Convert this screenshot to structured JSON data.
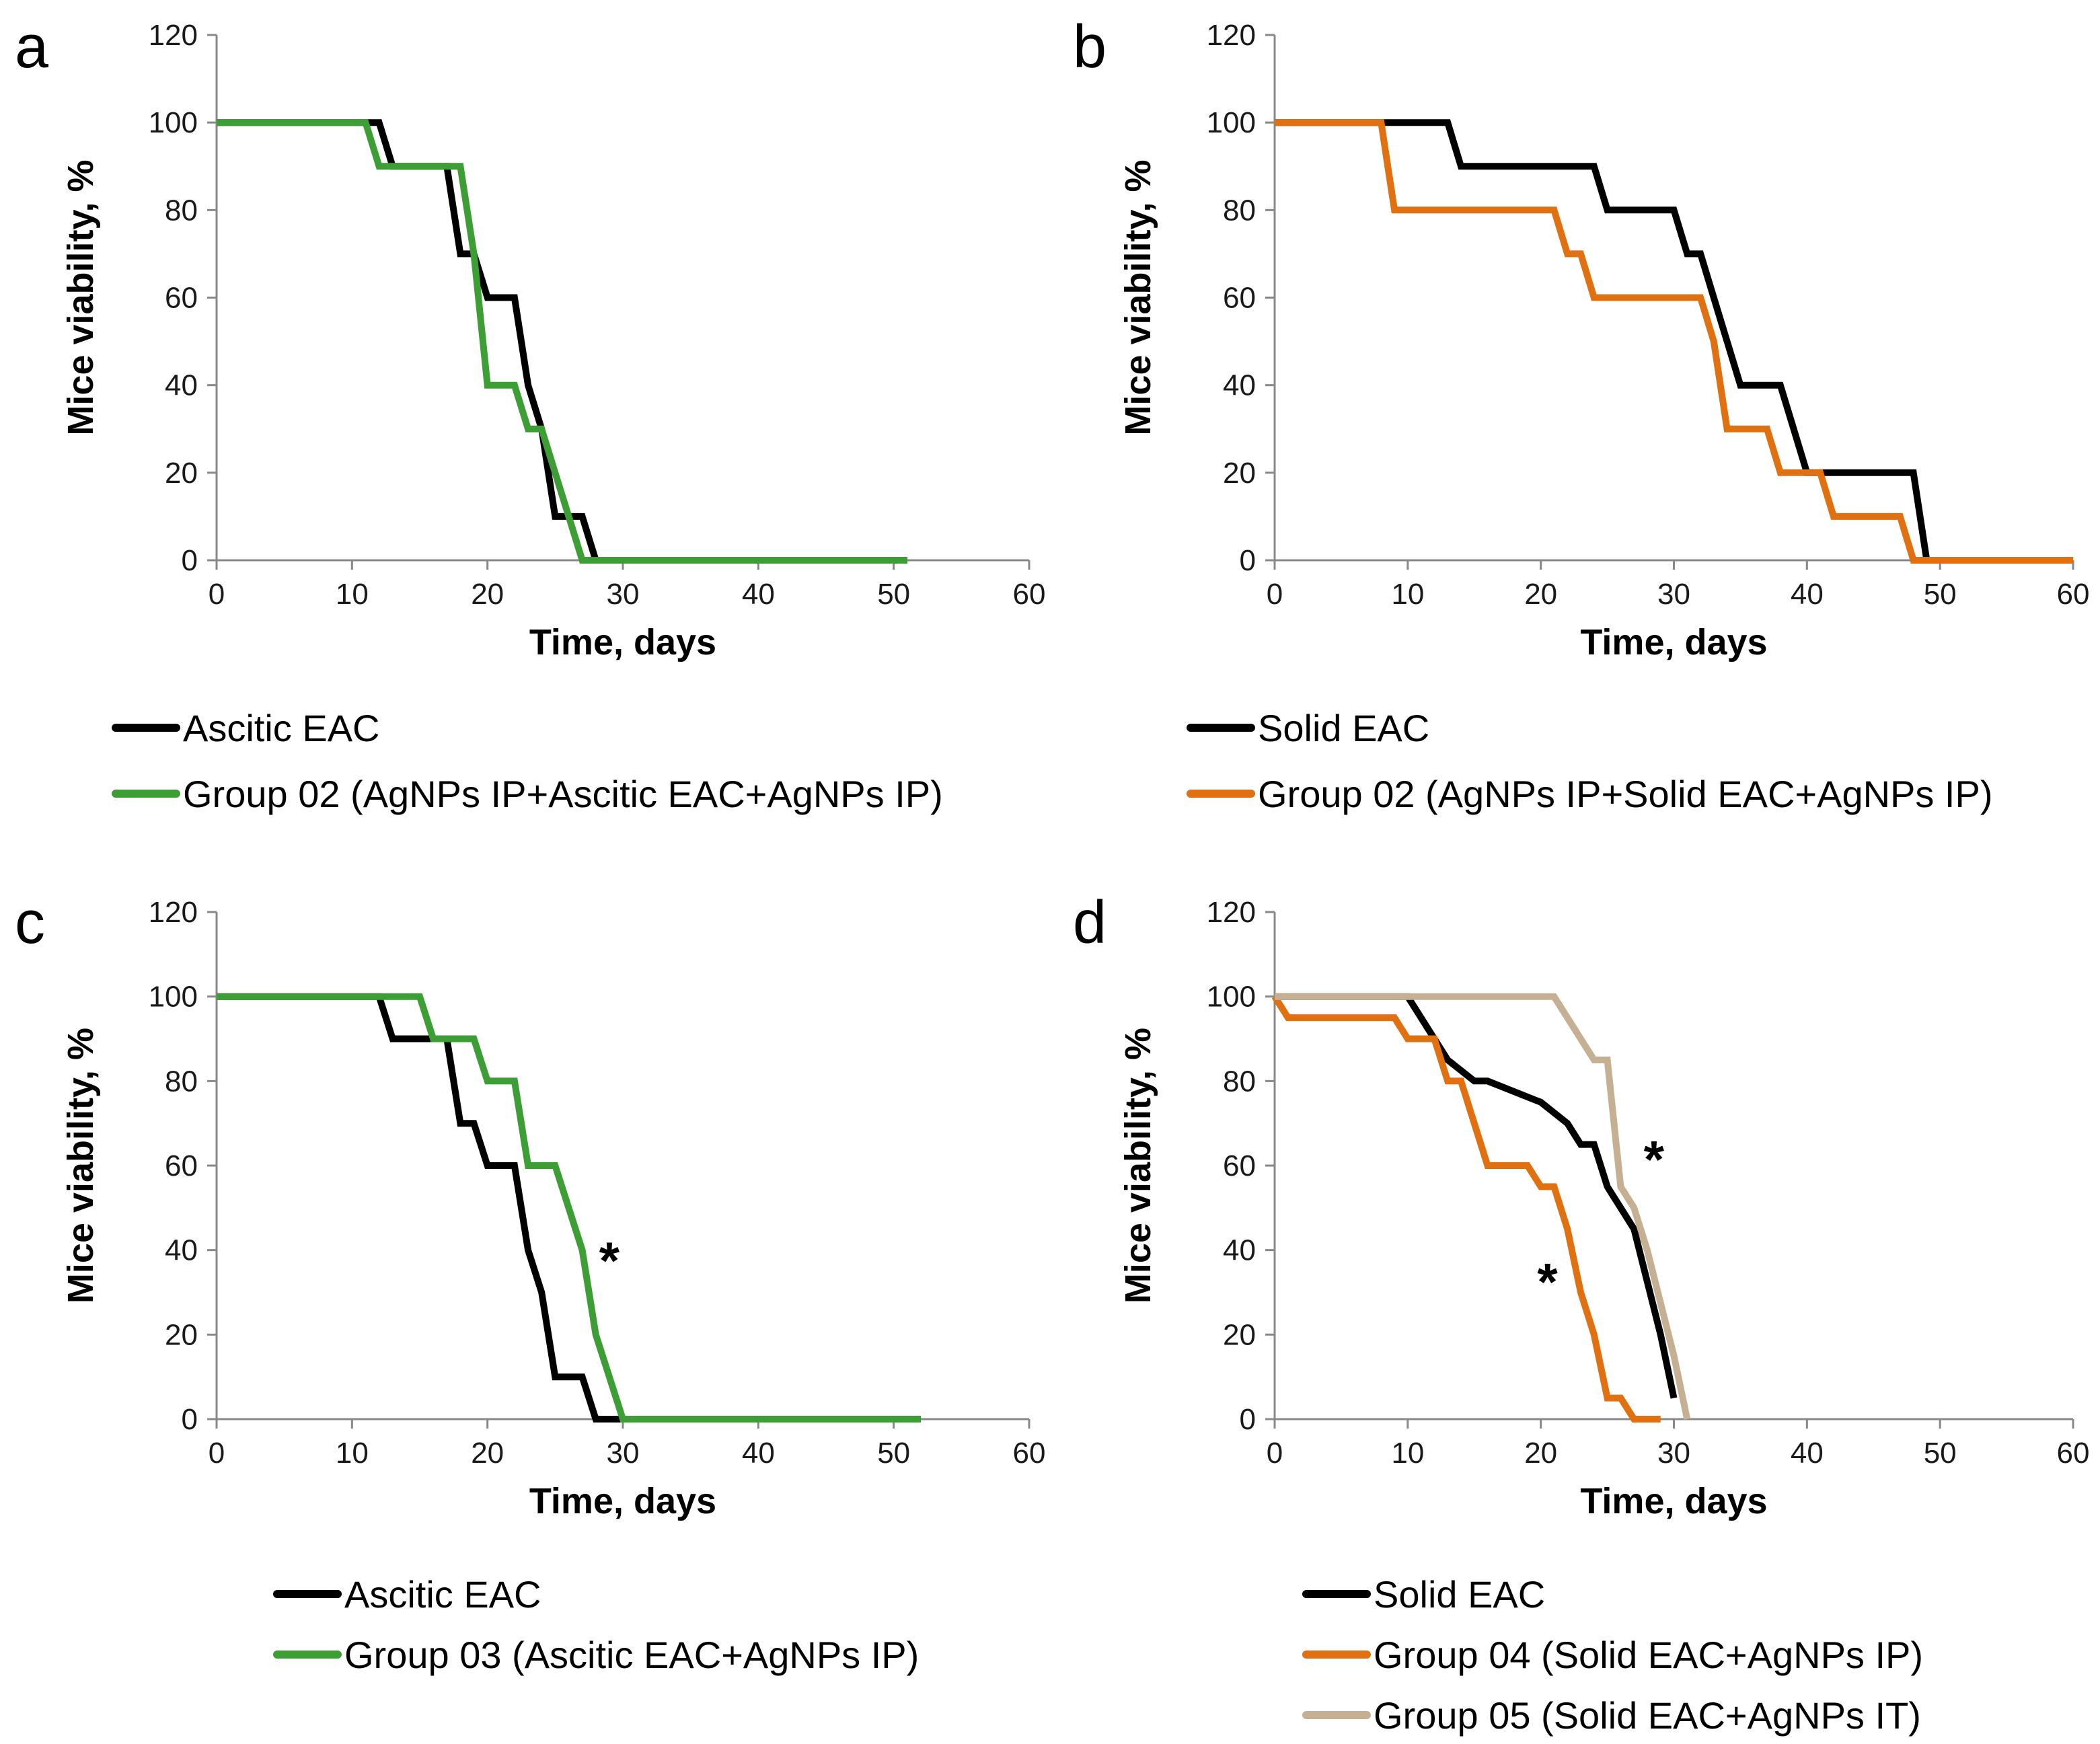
{
  "chart_data": [
    {
      "type": "line",
      "panel": "a",
      "xlabel": "Time, days",
      "ylabel": "Mice viability, %",
      "xlim": [
        0,
        60
      ],
      "ylim": [
        0,
        120
      ],
      "xticks": [
        0,
        10,
        20,
        30,
        40,
        50,
        60
      ],
      "yticks": [
        0,
        20,
        40,
        60,
        80,
        100,
        120
      ],
      "legend_position": "bottom",
      "series": [
        {
          "name": "Ascitic EAC",
          "color": "#000000",
          "x": [
            0,
            12,
            13,
            17,
            18,
            19,
            20,
            22,
            23,
            24,
            25,
            26,
            27,
            28,
            51
          ],
          "y": [
            100,
            100,
            90,
            90,
            70,
            70,
            60,
            60,
            40,
            30,
            10,
            10,
            10,
            0,
            0
          ]
        },
        {
          "name": "Group 02 (AgNPs IP+Ascitic EAC+AgNPs IP)",
          "color": "#3d9e35",
          "x": [
            0,
            11,
            12,
            18,
            19,
            20,
            22,
            23,
            24,
            25,
            26,
            27,
            51
          ],
          "y": [
            100,
            100,
            90,
            90,
            70,
            40,
            40,
            30,
            30,
            20,
            10,
            0,
            0
          ]
        }
      ],
      "annotations": []
    },
    {
      "type": "line",
      "panel": "b",
      "xlabel": "Time, days",
      "ylabel": "Mice viability, %",
      "xlim": [
        0,
        60
      ],
      "ylim": [
        0,
        120
      ],
      "xticks": [
        0,
        10,
        20,
        30,
        40,
        50,
        60
      ],
      "yticks": [
        0,
        20,
        40,
        60,
        80,
        100,
        120
      ],
      "legend_position": "bottom",
      "series": [
        {
          "name": "Solid EAC",
          "color": "#000000",
          "x": [
            0,
            13,
            14,
            24,
            25,
            30,
            31,
            32,
            33,
            34,
            35,
            38,
            39,
            40,
            41,
            48,
            49,
            60
          ],
          "y": [
            100,
            100,
            90,
            90,
            80,
            80,
            70,
            70,
            60,
            50,
            40,
            40,
            30,
            20,
            20,
            20,
            0,
            0
          ]
        },
        {
          "name": "Group 02 (AgNPs IP+Solid EAC+AgNPs IP)",
          "color": "#e07010",
          "x": [
            0,
            8,
            9,
            21,
            22,
            23,
            24,
            32,
            33,
            34,
            37,
            38,
            41,
            42,
            47,
            48,
            60
          ],
          "y": [
            100,
            100,
            80,
            80,
            70,
            70,
            60,
            60,
            50,
            30,
            30,
            20,
            20,
            10,
            10,
            0,
            0
          ]
        }
      ],
      "annotations": []
    },
    {
      "type": "line",
      "panel": "c",
      "xlabel": "Time, days",
      "ylabel": "Mice viability, %",
      "xlim": [
        0,
        60
      ],
      "ylim": [
        0,
        120
      ],
      "xticks": [
        0,
        10,
        20,
        30,
        40,
        50,
        60
      ],
      "yticks": [
        0,
        20,
        40,
        60,
        80,
        100,
        120
      ],
      "legend_position": "bottom",
      "series": [
        {
          "name": "Ascitic EAC",
          "color": "#000000",
          "x": [
            0,
            12,
            13,
            17,
            18,
            19,
            20,
            22,
            23,
            24,
            25,
            27,
            28,
            52
          ],
          "y": [
            100,
            100,
            90,
            90,
            70,
            70,
            60,
            60,
            40,
            30,
            10,
            10,
            0,
            0
          ]
        },
        {
          "name": "Group 03 (Ascitic EAC+AgNPs IP)",
          "color": "#3d9e35",
          "x": [
            0,
            15,
            16,
            19,
            20,
            22,
            23,
            25,
            27,
            28,
            29,
            30,
            52
          ],
          "y": [
            100,
            100,
            90,
            90,
            80,
            80,
            60,
            60,
            40,
            20,
            10,
            0,
            0
          ]
        }
      ],
      "annotations": [
        {
          "text": "*",
          "x": 29,
          "y": 38
        }
      ]
    },
    {
      "type": "line",
      "panel": "d",
      "xlabel": "Time, days",
      "ylabel": "Mice viability, %",
      "xlim": [
        0,
        60
      ],
      "ylim": [
        0,
        120
      ],
      "xticks": [
        0,
        10,
        20,
        30,
        40,
        50,
        60
      ],
      "yticks": [
        0,
        20,
        40,
        60,
        80,
        100,
        120
      ],
      "legend_position": "bottom",
      "series": [
        {
          "name": "Solid EAC",
          "color": "#000000",
          "x": [
            0,
            10,
            13,
            15,
            16,
            20,
            22,
            23,
            24,
            25,
            27,
            29,
            30
          ],
          "y": [
            100,
            100,
            85,
            80,
            80,
            75,
            70,
            65,
            65,
            55,
            45,
            20,
            5
          ]
        },
        {
          "name": "Group 04 (Solid EAC+AgNPs IP)",
          "color": "#e07010",
          "x": [
            0,
            1,
            9,
            10,
            12,
            13,
            14,
            16,
            19,
            20,
            21,
            22,
            23,
            24,
            25,
            26,
            27,
            29
          ],
          "y": [
            100,
            95,
            95,
            90,
            90,
            80,
            80,
            60,
            60,
            55,
            55,
            45,
            30,
            20,
            5,
            5,
            0,
            0
          ]
        },
        {
          "name": "Group 05 (Solid EAC+AgNPs IT)",
          "color": "#c5b093",
          "x": [
            0,
            21,
            24,
            25,
            26,
            27,
            28,
            30,
            31
          ],
          "y": [
            100,
            100,
            85,
            85,
            55,
            50,
            40,
            15,
            0
          ]
        }
      ],
      "annotations": [
        {
          "text": "*",
          "x": 28.5,
          "y": 62
        },
        {
          "text": "*",
          "x": 20.5,
          "y": 33
        }
      ]
    }
  ]
}
